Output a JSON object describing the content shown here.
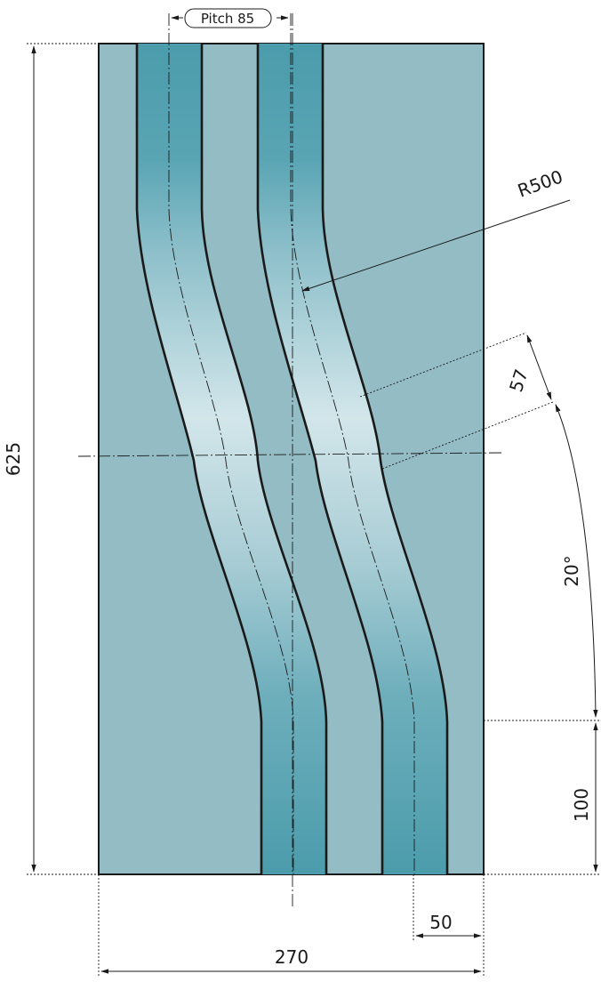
{
  "labels": {
    "pitch": "Pitch 85",
    "radius": "R500",
    "height": "625",
    "channel_width": "57",
    "angle": "20°",
    "straight_length": "100",
    "edge_offset": "50",
    "width": "270"
  },
  "colors": {
    "plate": "#93bcc4",
    "channel_dark": "#4b9cac",
    "channel_light": "#d2e6ea",
    "outline": "#1a1a1a"
  }
}
